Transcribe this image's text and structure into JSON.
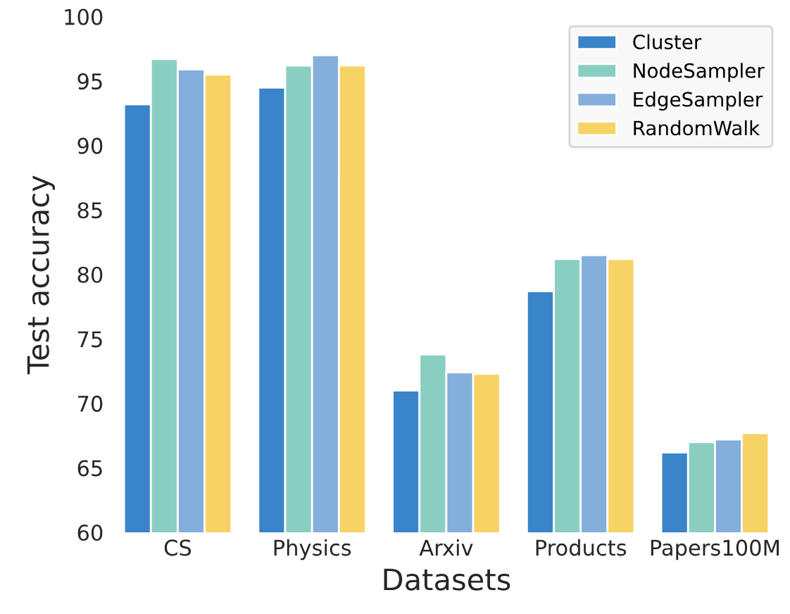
{
  "chart_data": {
    "type": "bar",
    "xlabel": "Datasets",
    "ylabel": "Test accuracy",
    "categories": [
      "CS",
      "Physics",
      "Arxiv",
      "Products",
      "Papers100M"
    ],
    "series": [
      {
        "name": "Cluster",
        "color": "#3a84c9",
        "values": [
          93.2,
          94.5,
          71.0,
          78.7,
          66.2
        ]
      },
      {
        "name": "NodeSampler",
        "color": "#8acec2",
        "values": [
          96.7,
          96.2,
          73.8,
          81.2,
          67.0
        ]
      },
      {
        "name": "EdgeSampler",
        "color": "#84aedb",
        "values": [
          95.9,
          97.0,
          72.4,
          81.5,
          67.2
        ]
      },
      {
        "name": "RandomWalk",
        "color": "#f7d264",
        "values": [
          95.5,
          96.2,
          72.3,
          81.2,
          67.7
        ]
      }
    ],
    "ylim": [
      60,
      100
    ],
    "yticks": [
      60,
      65,
      70,
      75,
      80,
      85,
      90,
      95,
      100
    ],
    "grid": false,
    "legend": "top right"
  }
}
